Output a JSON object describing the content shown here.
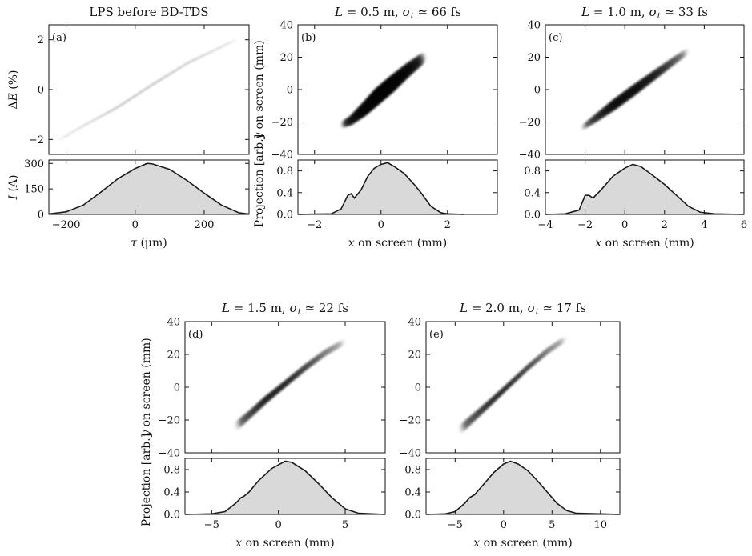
{
  "chart_data": [
    {
      "id": "a",
      "type": "scatter",
      "title": "LPS before BD-TDS",
      "panel_label": "(a)",
      "top": {
        "ylabel_parts": [
          "Δ",
          "E",
          " (%)"
        ],
        "xlim": [
          -250,
          330
        ],
        "ylim": [
          -2.6,
          2.6
        ],
        "yticks": [
          -2,
          0,
          2
        ],
        "yticklabels": [
          "−2",
          "0",
          "2"
        ],
        "xticks": [
          -200,
          0,
          200
        ],
        "band": {
          "x": [
            -230,
            -150,
            -50,
            50,
            150,
            300
          ],
          "y": [
            -2.1,
            -1.45,
            -0.7,
            0.2,
            1.05,
            2.05
          ],
          "width": [
            0.03,
            0.04,
            0.05,
            0.05,
            0.05,
            0.04
          ],
          "dens": [
            0.7,
            0.85,
            1.0,
            1.0,
            0.85,
            0.6
          ]
        }
      },
      "bottom": {
        "ylabel_parts": [
          "I",
          " (A)"
        ],
        "xlabel_parts": [
          "τ",
          " (μm)"
        ],
        "xlim": [
          -250,
          330
        ],
        "ylim": [
          0,
          320
        ],
        "yticks": [
          0,
          150,
          300
        ],
        "yticklabels": [
          "0",
          "150",
          "300"
        ],
        "xticks": [
          -200,
          0,
          200
        ],
        "xticklabels": [
          "−200",
          "0",
          "200"
        ],
        "profile": {
          "x": [
            -250,
            -200,
            -150,
            -100,
            -50,
            0,
            35,
            50,
            100,
            150,
            200,
            250,
            300,
            330
          ],
          "y": [
            3,
            15,
            55,
            130,
            210,
            270,
            300,
            297,
            265,
            200,
            125,
            55,
            10,
            2
          ]
        }
      }
    },
    {
      "id": "b",
      "type": "scatter",
      "title_parts": [
        "L",
        " = 0.5 m, ",
        "σ",
        "t",
        " ≃ 66 fs"
      ],
      "panel_label": "(b)",
      "top": {
        "ylabel_parts": [
          "y",
          " on screen (mm)"
        ],
        "xlim": [
          -2.5,
          3.5
        ],
        "ylim": [
          -40,
          40
        ],
        "yticks": [
          -40,
          -20,
          0,
          20,
          40
        ],
        "yticklabels": [
          "−40",
          "−20",
          "0",
          "20",
          "40"
        ],
        "xticks": [
          -2,
          0,
          2
        ],
        "band": {
          "x": [
            -1.2,
            -0.9,
            -0.5,
            -0.1,
            0.3,
            0.8,
            1.3
          ],
          "y": [
            -22,
            -19,
            -12,
            -4,
            3,
            12,
            20
          ],
          "width": [
            2.5,
            3.5,
            5,
            6,
            6,
            5,
            4
          ],
          "dens": [
            0.4,
            0.8,
            0.95,
            1.0,
            0.9,
            0.75,
            0.45
          ]
        }
      },
      "bottom": {
        "ylabel_parts": [
          "Projection [arb.]"
        ],
        "xlabel_parts": [
          "x",
          " on screen (mm)"
        ],
        "xlim": [
          -2.5,
          3.5
        ],
        "ylim": [
          0,
          1.0
        ],
        "yticks": [
          0,
          0.4,
          0.8
        ],
        "yticklabels": [
          "0.0",
          "0.4",
          "0.8"
        ],
        "xticks": [
          -2,
          0,
          2
        ],
        "xticklabels": [
          "−2",
          "0",
          "2"
        ],
        "profile": {
          "x": [
            -2.5,
            -1.5,
            -1.2,
            -1.0,
            -0.9,
            -0.8,
            -0.6,
            -0.4,
            -0.2,
            0.0,
            0.2,
            0.4,
            0.7,
            1.0,
            1.2,
            1.5,
            1.8,
            2.0,
            2.5
          ],
          "y": [
            0,
            0.01,
            0.1,
            0.35,
            0.38,
            0.3,
            0.45,
            0.7,
            0.85,
            0.92,
            0.95,
            0.88,
            0.75,
            0.55,
            0.4,
            0.15,
            0.03,
            0.01,
            0
          ]
        }
      }
    },
    {
      "id": "c",
      "type": "scatter",
      "title_parts": [
        "L",
        " = 1.0 m, ",
        "σ",
        "t",
        " ≃ 33 fs"
      ],
      "panel_label": "(c)",
      "top": {
        "xlim": [
          -4,
          6
        ],
        "ylim": [
          -40,
          40
        ],
        "yticks": [
          -40,
          -20,
          0,
          20,
          40
        ],
        "yticklabels": [
          "−40",
          "−20",
          "0",
          "20",
          "40"
        ],
        "xticks": [
          -4,
          -2,
          0,
          2,
          4,
          6
        ],
        "band": {
          "x": [
            -2.2,
            -1.5,
            -0.5,
            0.5,
            1.5,
            2.5,
            3.2
          ],
          "y": [
            -24,
            -18,
            -9,
            0,
            9,
            18,
            24
          ],
          "width": [
            2,
            3,
            4,
            4,
            3.5,
            3,
            2.5
          ],
          "dens": [
            0.4,
            0.75,
            1.0,
            0.95,
            0.8,
            0.5,
            0.25
          ]
        }
      },
      "bottom": {
        "xlabel_parts": [
          "x",
          " on screen (mm)"
        ],
        "xlim": [
          -4,
          6
        ],
        "ylim": [
          0,
          1.0
        ],
        "yticks": [
          0,
          0.4,
          0.8
        ],
        "yticklabels": [
          "0.0",
          "0.4",
          "0.8"
        ],
        "xticks": [
          -4,
          -2,
          0,
          2,
          4,
          6
        ],
        "xticklabels": [
          "−4",
          "−2",
          "0",
          "2",
          "4",
          "6"
        ],
        "profile": {
          "x": [
            -4,
            -3,
            -2.3,
            -2.0,
            -1.8,
            -1.6,
            -1.2,
            -0.6,
            0,
            0.4,
            0.8,
            1.4,
            2.0,
            2.6,
            3.2,
            3.8,
            4.5,
            6
          ],
          "y": [
            0,
            0.01,
            0.08,
            0.35,
            0.35,
            0.3,
            0.45,
            0.7,
            0.85,
            0.92,
            0.88,
            0.72,
            0.55,
            0.35,
            0.15,
            0.04,
            0.01,
            0
          ]
        }
      }
    },
    {
      "id": "d",
      "type": "scatter",
      "title_parts": [
        "L",
        " = 1.5 m, ",
        "σ",
        "t",
        " ≃ 22 fs"
      ],
      "panel_label": "(d)",
      "top": {
        "ylabel_parts": [
          "y",
          " on screen (mm)"
        ],
        "xlim": [
          -7,
          8
        ],
        "ylim": [
          -40,
          40
        ],
        "yticks": [
          -40,
          -20,
          0,
          20,
          40
        ],
        "yticklabels": [
          "−40",
          "−20",
          "0",
          "20",
          "40"
        ],
        "xticks": [
          -5,
          0,
          5
        ],
        "band": {
          "x": [
            -3.2,
            -2.2,
            -1.0,
            0.5,
            2.0,
            3.5,
            5.0
          ],
          "y": [
            -24,
            -17,
            -8,
            2,
            12,
            21,
            28
          ],
          "width": [
            3.5,
            3,
            2.8,
            2.5,
            2.5,
            2.5,
            2.5
          ],
          "dens": [
            0.3,
            0.6,
            0.95,
            1.0,
            0.7,
            0.4,
            0.15
          ]
        }
      },
      "bottom": {
        "ylabel_parts": [
          "Projection [arb.]"
        ],
        "xlabel_parts": [
          "x",
          " on screen (mm)"
        ],
        "xlim": [
          -7,
          8
        ],
        "ylim": [
          0,
          1.0
        ],
        "yticks": [
          0,
          0.4,
          0.8
        ],
        "yticklabels": [
          "0.0",
          "0.4",
          "0.8"
        ],
        "xticks": [
          -5,
          0,
          5
        ],
        "xticklabels": [
          "−5",
          "0",
          "5"
        ],
        "profile": {
          "x": [
            -7,
            -5,
            -4,
            -3.2,
            -2.8,
            -2.6,
            -2.2,
            -1.5,
            -0.5,
            0.5,
            1.0,
            2.0,
            3.0,
            4.0,
            5.0,
            6.0,
            8
          ],
          "y": [
            0,
            0.01,
            0.05,
            0.2,
            0.3,
            0.32,
            0.4,
            0.6,
            0.82,
            0.95,
            0.93,
            0.78,
            0.55,
            0.3,
            0.1,
            0.02,
            0
          ]
        }
      }
    },
    {
      "id": "e",
      "type": "scatter",
      "title_parts": [
        "L",
        " = 2.0 m, ",
        "σ",
        "t",
        " ≃ 17 fs"
      ],
      "panel_label": "(e)",
      "top": {
        "xlim": [
          -8,
          12
        ],
        "ylim": [
          -40,
          40
        ],
        "yticks": [
          -40,
          -20,
          0,
          20,
          40
        ],
        "yticklabels": [
          "−40",
          "−20",
          "0",
          "20",
          "40"
        ],
        "xticks": [
          -5,
          0,
          5,
          10
        ],
        "band": {
          "x": [
            -4.5,
            -3.0,
            -1.5,
            0.5,
            2.5,
            4.5,
            6.5
          ],
          "y": [
            -26,
            -18,
            -10,
            1,
            12,
            22,
            30
          ],
          "width": [
            3.5,
            3,
            2.6,
            2.2,
            2.2,
            2.4,
            2.4
          ],
          "dens": [
            0.3,
            0.55,
            0.85,
            1.0,
            0.75,
            0.4,
            0.15
          ]
        }
      },
      "bottom": {
        "xlabel_parts": [
          "x",
          " on screen (mm)"
        ],
        "xlim": [
          -8,
          12
        ],
        "ylim": [
          0,
          1.0
        ],
        "yticks": [
          0,
          0.4,
          0.8
        ],
        "yticklabels": [
          "0.0",
          "0.4",
          "0.8"
        ],
        "xticks": [
          -5,
          0,
          5,
          10
        ],
        "xticklabels": [
          "−5",
          "0",
          "5",
          "10"
        ],
        "profile": {
          "x": [
            -8,
            -6,
            -5,
            -4,
            -3.5,
            -3,
            -2,
            -1,
            0,
            0.7,
            1.5,
            2.5,
            3.5,
            4.5,
            5.5,
            6.5,
            7.5,
            12
          ],
          "y": [
            0,
            0.01,
            0.05,
            0.2,
            0.3,
            0.35,
            0.55,
            0.75,
            0.9,
            0.95,
            0.9,
            0.78,
            0.6,
            0.4,
            0.2,
            0.07,
            0.02,
            0
          ]
        }
      }
    }
  ]
}
